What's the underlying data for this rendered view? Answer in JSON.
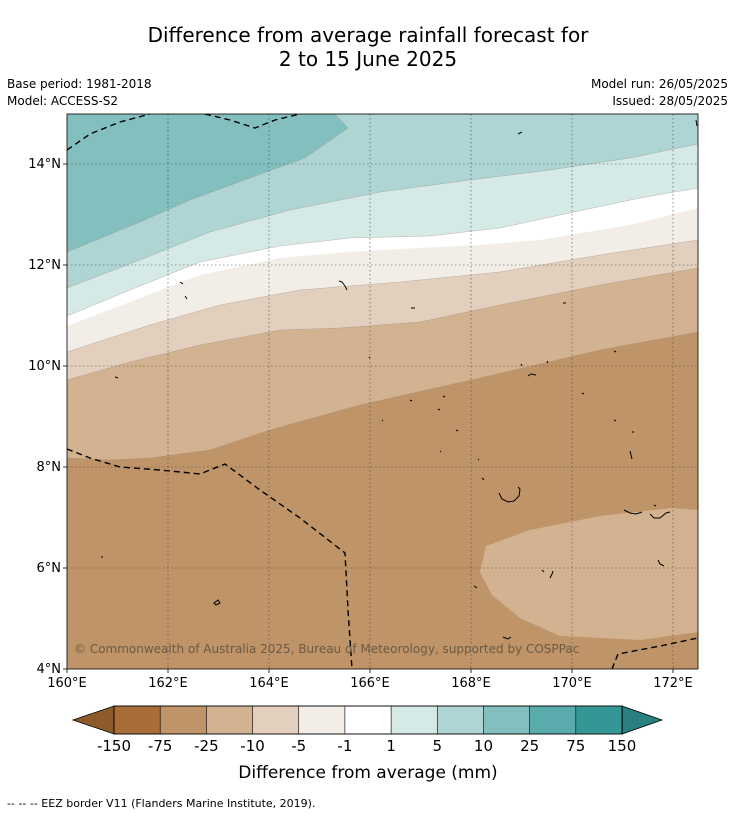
{
  "header": {
    "title_line1": "Difference from average rainfall forecast for",
    "title_line2": "2 to 15 June 2025",
    "base_period": "Base period: 1981-2018",
    "model": "Model: ACCESS-S2",
    "model_run": "Model run: 26/05/2025",
    "issued": "Issued: 28/05/2025"
  },
  "map": {
    "lon_ticks": [
      "160°E",
      "162°E",
      "164°E",
      "166°E",
      "168°E",
      "170°E",
      "172°E"
    ],
    "lat_ticks": [
      "4°N",
      "6°N",
      "8°N",
      "10°N",
      "12°N",
      "14°N"
    ],
    "copyright": "© Commonwealth of Australia 2025, Bureau of Meteorology, supported by COSPPac"
  },
  "colorbar": {
    "labels": [
      "-150",
      "-75",
      "-25",
      "-10",
      "-5",
      "-1",
      "1",
      "5",
      "10",
      "25",
      "75",
      "150"
    ],
    "colors": [
      "#a96e37",
      "#bf9468",
      "#d3b291",
      "#e3cfbd",
      "#f2ede6",
      "#ffffff",
      "#d5e9e7",
      "#aed5d4",
      "#84bfbf",
      "#5aabab",
      "#349796"
    ],
    "under_color": "#8c5a2b",
    "over_color": "#2a7f7f",
    "title": "Difference from average (mm)"
  },
  "footnote": "--  --  -- EEZ border V11 (Flanders Marine Institute, 2019)."
}
